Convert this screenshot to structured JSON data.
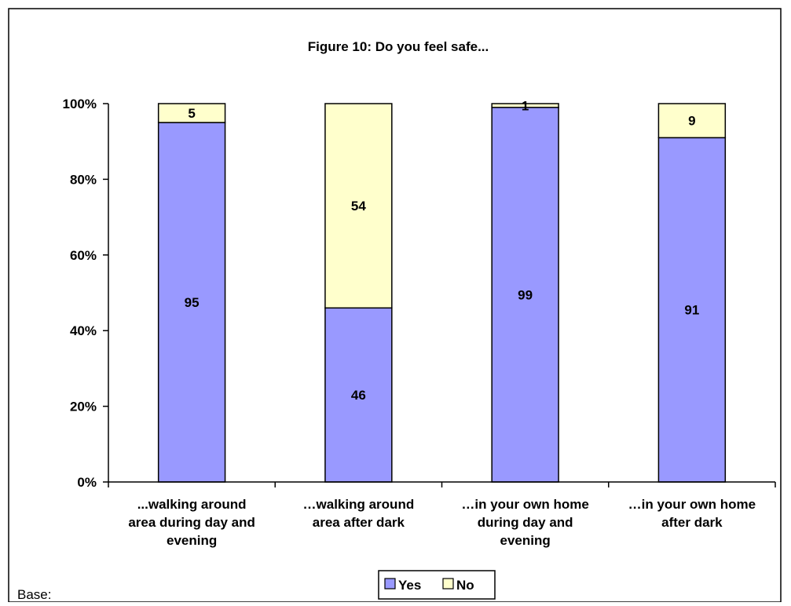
{
  "chart_data": {
    "type": "bar",
    "stacked": true,
    "percent": true,
    "title": "Figure 10: Do you feel safe...",
    "categories": [
      [
        "...walking around",
        "area during day and",
        "evening"
      ],
      [
        "…walking around",
        "area after dark"
      ],
      [
        "…in your own home",
        "during day and",
        "evening"
      ],
      [
        "…in your own home",
        "after dark"
      ]
    ],
    "series": [
      {
        "name": "Yes",
        "values": [
          95,
          46,
          99,
          91
        ],
        "color": "#9999FF"
      },
      {
        "name": "No",
        "values": [
          5,
          54,
          1,
          9
        ],
        "color": "#FFFFCC"
      }
    ],
    "ylim": [
      0,
      100
    ],
    "yticks": [
      "0%",
      "20%",
      "40%",
      "60%",
      "80%",
      "100%"
    ],
    "xlabel": "",
    "ylabel": "",
    "grid": false,
    "legend_position": "bottom",
    "footnote": "Base:"
  }
}
